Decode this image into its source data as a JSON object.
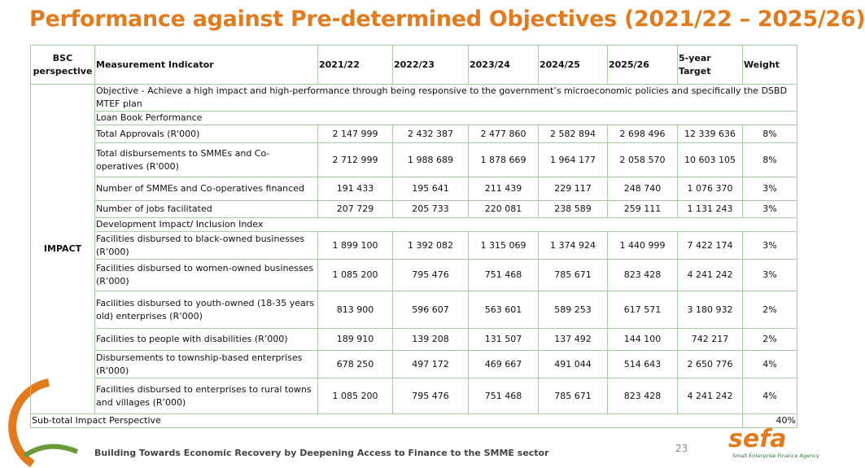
{
  "title": "Performance against Pre-determined Objectives (2021/22 – 2025/26)",
  "table": {
    "header": [
      "BSC perspective",
      "Measurement Indicator",
      "2021/22",
      "2022/23",
      "2023/24",
      "2024/25",
      "2025/26",
      "5-year Target",
      "Weight"
    ],
    "perspective": "IMPACT",
    "rows": [
      [
        "Objective - Achieve a high impact and high-performance through being responsive to the government’s microeconomic policies and specifically the DSBD MTEF plan"
      ],
      [
        "Loan Book Performance"
      ],
      [
        "Total Approvals (R'000)",
        "2 147 999",
        "2 432 387",
        "2 477 860",
        "2 582 894",
        "2 698 496",
        "12 339 636",
        "8%"
      ],
      [
        "Total disbursements to SMMEs and Co-operatives (R'000)",
        "2 712 999",
        "1 988 689",
        "1 878 669",
        "1 964 177",
        "2 058 570",
        "10 603 105",
        "8%"
      ],
      [
        "Number of SMMEs and Co-operatives financed",
        "191 433",
        "195 641",
        "211 439",
        "229 117",
        "248 740",
        "1 076 370",
        "3%"
      ],
      [
        "Number of jobs facilitated",
        "207 729",
        "205 733",
        "220 081",
        "238 589",
        "259 111",
        "1 131 243",
        "3%"
      ],
      [
        "Development Impact/ Inclusion Index"
      ],
      [
        "Facilities disbursed to black-owned businesses (R’000)",
        "1 899 100",
        "1 392 082",
        "1 315 069",
        "1 374 924",
        "1 440 999",
        "7 422 174",
        "3%"
      ],
      [
        "Facilities disbursed to women-owned businesses (R’000)",
        "1 085 200",
        "795 476",
        "751 468",
        "785 671",
        "823 428",
        "4 241 242",
        "3%"
      ],
      [
        "Facilities disbursed to youth-owned (18-35 years old) enterprises (R’000)",
        "813 900",
        "596 607",
        "563 601",
        "589 253",
        "617 571",
        "3 180 932",
        "2%"
      ],
      [
        "Facilities to people with disabilities (R’000)",
        "189 910",
        "139 208",
        "131 507",
        "137 492",
        "144 100",
        "742 217",
        "2%"
      ],
      [
        "Disbursements to township-based enterprises (R'000)",
        "678 250",
        "497 172",
        "469 667",
        "491 044",
        "514 643",
        "2 650 776",
        "4%"
      ],
      [
        "Facilities disbursed to enterprises to rural towns and villages (R’000)",
        "1 085 200",
        "795 476",
        "751 468",
        "785 671",
        "823 428",
        "4 241 242",
        "4%"
      ]
    ],
    "subtotal": [
      "Sub-total Impact Perspective",
      "40%"
    ]
  },
  "footer": "Building Towards Economic Recovery by Deepening Access to Finance to the SMME sector",
  "page_number": "23",
  "logo": "sefa",
  "logo_subtitle": "Small Enterprise Finance Agency"
}
